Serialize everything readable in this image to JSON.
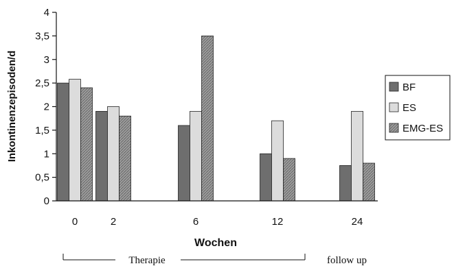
{
  "chart_data": {
    "type": "bar",
    "categories": [
      "0",
      "2",
      "6",
      "12",
      "24"
    ],
    "series": [
      {
        "name": "BF",
        "values": [
          2.5,
          1.9,
          1.6,
          1.0,
          0.75
        ],
        "color": "#6e6e6e"
      },
      {
        "name": "ES",
        "values": [
          2.58,
          2.0,
          1.9,
          1.7,
          1.9
        ],
        "color": "#dcdcdc"
      },
      {
        "name": "EMG-ES",
        "values": [
          2.4,
          1.8,
          3.5,
          0.9,
          0.8
        ],
        "color": "#9c9c9c"
      }
    ],
    "xlabel": "Wochen",
    "ylabel": "Inkontinenzepisoden/d",
    "ylim": [
      0,
      4
    ],
    "yticks": [
      "0",
      "0,5",
      "1",
      "1,5",
      "2",
      "2,5",
      "3",
      "3,5",
      "4"
    ],
    "grid": false,
    "legend_position": "right",
    "annotations": {
      "therapy": "Therapie",
      "follow_up": "follow up"
    }
  }
}
